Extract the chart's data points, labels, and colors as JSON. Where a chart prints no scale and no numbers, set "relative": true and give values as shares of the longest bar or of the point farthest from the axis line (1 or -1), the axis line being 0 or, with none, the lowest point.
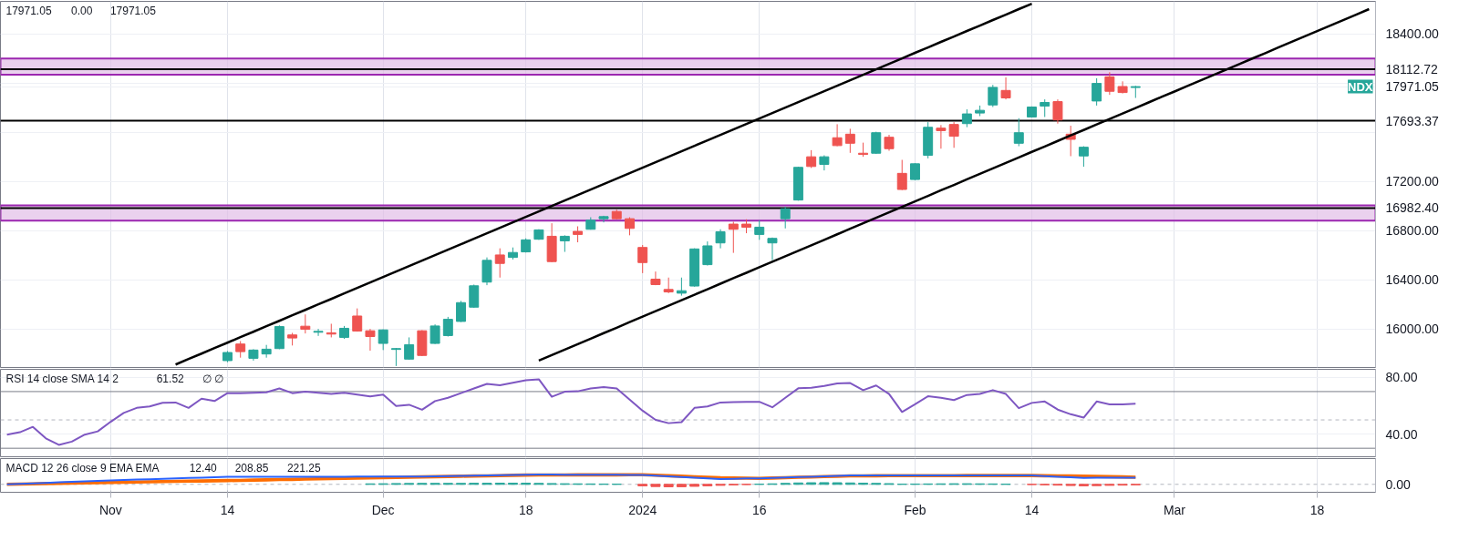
{
  "chart_data": [
    {
      "type": "candlestick",
      "categories": [
        null,
        null,
        null,
        null,
        null,
        null,
        null,
        null,
        null,
        null,
        null,
        null,
        null,
        null,
        null,
        null,
        null,
        null,
        null,
        null,
        null,
        null,
        null,
        null,
        null,
        null,
        null,
        null,
        null,
        null,
        null,
        null,
        null,
        null,
        null,
        null,
        null,
        null,
        null,
        null,
        null,
        null,
        null,
        null,
        null,
        null,
        null,
        null,
        null,
        null,
        null,
        null,
        null,
        null,
        null,
        null,
        null,
        null,
        null,
        null,
        null,
        null,
        null,
        null,
        null,
        null,
        null,
        null,
        null,
        null,
        null,
        null,
        null,
        null,
        null,
        null,
        null,
        null,
        null,
        null,
        null,
        null,
        null,
        null,
        null,
        null,
        null,
        null,
        null,
        null,
        null,
        null,
        null,
        null,
        null,
        null,
        null,
        null,
        null,
        null,
        null,
        null,
        null,
        null,
        null,
        null
      ],
      "ohlc": [
        null,
        null,
        null,
        null,
        null,
        null,
        null,
        null,
        null,
        null,
        null,
        null,
        null,
        null,
        null,
        null,
        null,
        [
          15741,
          15819,
          15728,
          15807
        ],
        [
          15876,
          15900,
          15765,
          15814
        ],
        [
          15760,
          15834,
          15741,
          15827
        ],
        [
          15795,
          15869,
          15765,
          15834
        ],
        [
          15839,
          16028,
          15834,
          16018
        ],
        [
          15950,
          15967,
          15864,
          15925
        ],
        [
          16021,
          16117,
          15962,
          15996
        ],
        [
          15972,
          15999,
          15942,
          15979
        ],
        [
          15967,
          16041,
          15930,
          15957
        ],
        [
          15930,
          16023,
          15918,
          16004
        ],
        [
          16104,
          16166,
          15977,
          15982
        ],
        [
          15984,
          15999,
          15822,
          15937
        ],
        [
          15881,
          15996,
          15827,
          15991
        ],
        [
          15832,
          15844,
          15697,
          15839
        ],
        [
          15753,
          15930,
          15748,
          15871
        ],
        [
          15984,
          15989,
          15778,
          15783
        ],
        [
          15881,
          16036,
          15876,
          16023
        ],
        [
          15945,
          16097,
          15937,
          16077
        ],
        [
          16060,
          16227,
          16055,
          16213
        ],
        [
          16176,
          16360,
          16171,
          16350
        ],
        [
          16380,
          16581,
          16355,
          16557
        ],
        [
          16601,
          16655,
          16417,
          16532
        ],
        [
          16581,
          16662,
          16564,
          16621
        ],
        [
          16626,
          16736,
          16621,
          16724
        ],
        [
          16729,
          16810,
          16724,
          16805
        ],
        [
          16753,
          16859,
          16542,
          16547
        ],
        [
          16716,
          16761,
          16626,
          16753
        ],
        [
          16793,
          16834,
          16704,
          16768
        ],
        [
          16810,
          16908,
          16807,
          16884
        ],
        [
          16896,
          16920,
          16866,
          16913
        ],
        [
          16955,
          16970,
          16891,
          16896
        ],
        [
          16896,
          16908,
          16761,
          16817
        ],
        [
          16662,
          16682,
          16453,
          16539
        ],
        [
          16404,
          16466,
          16355,
          16360
        ],
        [
          16320,
          16417,
          16290,
          16300
        ],
        [
          16290,
          16417,
          16270,
          16310
        ],
        [
          16348,
          16655,
          16343,
          16650
        ],
        [
          16522,
          16711,
          16515,
          16675
        ],
        [
          16699,
          16810,
          16655,
          16790
        ],
        [
          16852,
          16871,
          16618,
          16810
        ],
        [
          16852,
          16891,
          16778,
          16827
        ],
        [
          16768,
          16884,
          16724,
          16827
        ],
        [
          16699,
          16743,
          16559,
          16736
        ],
        [
          16896,
          16994,
          16817,
          16977
        ],
        [
          17048,
          17319,
          17043,
          17314
        ],
        [
          17400,
          17454,
          17309,
          17321
        ],
        [
          17338,
          17412,
          17289,
          17400
        ],
        [
          17555,
          17665,
          17486,
          17491
        ],
        [
          17584,
          17628,
          17432,
          17510
        ],
        [
          17429,
          17515,
          17400,
          17419
        ],
        [
          17429,
          17604,
          17424,
          17596
        ],
        [
          17559,
          17579,
          17449,
          17466
        ],
        [
          17265,
          17375,
          17129,
          17134
        ],
        [
          17215,
          17348,
          17210,
          17343
        ],
        [
          17412,
          17682,
          17387,
          17640
        ],
        [
          17633,
          17658,
          17466,
          17613
        ],
        [
          17663,
          17682,
          17473,
          17567
        ],
        [
          17670,
          17786,
          17641,
          17749
        ],
        [
          17756,
          17817,
          17731,
          17778
        ],
        [
          17822,
          17985,
          17805,
          17965
        ],
        [
          17940,
          18046,
          17867,
          17879
        ],
        [
          17510,
          17714,
          17486,
          17596
        ],
        [
          17724,
          17810,
          17719,
          17805
        ],
        [
          17813,
          17867,
          17724,
          17842
        ],
        [
          17849,
          17867,
          17670,
          17700
        ],
        [
          17584,
          17653,
          17405,
          17542
        ],
        [
          17407,
          17486,
          17319,
          17478
        ],
        [
          17854,
          18039,
          17817,
          17997
        ],
        [
          18051,
          18088,
          17904,
          17933
        ],
        [
          17972,
          18014,
          17916,
          17923
        ],
        [
          17964,
          17978,
          17879,
          17971.05
        ],
        null,
        null,
        null,
        null,
        null,
        null,
        null,
        null,
        null,
        null,
        null,
        null,
        null,
        null,
        null,
        null,
        null,
        null
      ],
      "colors": [
        null,
        null,
        null,
        null,
        null,
        null,
        null,
        null,
        null,
        null,
        null,
        null,
        null,
        null,
        null,
        null,
        null,
        "#26a69a",
        "#ef5350",
        "#26a69a",
        "#26a69a",
        "#26a69a",
        "#ef5350",
        "#ef5350",
        "#26a69a",
        "#ef5350",
        "#26a69a",
        "#ef5350",
        "#ef5350",
        "#26a69a",
        "#26a69a",
        "#26a69a",
        "#ef5350",
        "#26a69a",
        "#26a69a",
        "#26a69a",
        "#26a69a",
        "#26a69a",
        "#ef5350",
        "#26a69a",
        "#26a69a",
        "#26a69a",
        "#ef5350",
        "#26a69a",
        "#ef5350",
        "#26a69a",
        "#26a69a",
        "#ef5350",
        "#ef5350",
        "#ef5350",
        "#ef5350",
        "#ef5350",
        "#26a69a",
        "#26a69a",
        "#26a69a",
        "#26a69a",
        "#ef5350",
        "#ef5350",
        "#26a69a",
        "#26a69a",
        "#26a69a",
        "#26a69a",
        "#ef5350",
        "#26a69a",
        "#ef5350",
        "#ef5350",
        "#ef5350",
        "#26a69a",
        "#ef5350",
        "#ef5350",
        "#26a69a",
        "#26a69a",
        "#ef5350",
        "#ef5350",
        "#26a69a",
        "#26a69a",
        "#26a69a",
        "#ef5350",
        "#26a69a",
        "#26a69a",
        "#26a69a",
        "#ef5350",
        "#ef5350",
        "#26a69a",
        "#26a69a",
        "#ef5350",
        "#ef5350",
        "#26a69a",
        null,
        null,
        null,
        null,
        null,
        null,
        null,
        null,
        null,
        null,
        null,
        null,
        null,
        null,
        null,
        null,
        null,
        null
      ],
      "series": [
        {
          "type": "line",
          "color": "#000000",
          "values": [
            null,
            null,
            null,
            null,
            null,
            null,
            null,
            null,
            null,
            null,
            null,
            null,
            null,
            15709,
            15754,
            15798,
            15843,
            15887,
            15932,
            15976,
            16021,
            16065,
            16110,
            16154,
            16199,
            16243,
            16288,
            16332,
            16377,
            16421,
            16466,
            16510,
            16555,
            16599,
            16644,
            16688,
            16733,
            16777,
            16822,
            16866,
            16911,
            16955,
            17000,
            17044,
            17089,
            17133,
            17178,
            17222,
            17267,
            17311,
            17356,
            17400,
            17445,
            17489,
            17534,
            17578,
            17623,
            17667,
            17712,
            17756,
            17801,
            17845,
            17890,
            17934,
            17979,
            18023,
            18068,
            18112,
            18157,
            18201,
            18246,
            18290,
            18335,
            18379,
            18424,
            18468,
            18513,
            18557,
            18602,
            18646,
            null,
            null,
            null,
            null,
            null,
            null,
            null,
            null,
            null,
            null,
            null,
            null,
            null,
            null,
            null,
            null,
            null,
            null,
            null,
            null,
            null,
            null,
            null,
            null,
            null,
            null
          ]
        },
        {
          "type": "line",
          "color": "#000000",
          "values": [
            null,
            null,
            null,
            null,
            null,
            null,
            null,
            null,
            null,
            null,
            null,
            null,
            null,
            null,
            null,
            null,
            null,
            null,
            null,
            null,
            null,
            null,
            null,
            null,
            null,
            null,
            null,
            null,
            null,
            null,
            null,
            null,
            null,
            null,
            null,
            null,
            null,
            null,
            null,
            null,
            null,
            15741,
            15786,
            15830,
            15875,
            15920,
            15965,
            16009,
            16054,
            16099,
            16143,
            16188,
            16233,
            16277,
            16322,
            16367,
            16412,
            16456,
            16501,
            16546,
            16590,
            16635,
            16680,
            16724,
            16769,
            16814,
            16859,
            16903,
            16948,
            16993,
            17037,
            17082,
            17127,
            17171,
            17216,
            17261,
            17306,
            17350,
            17395,
            17440,
            17484,
            17529,
            17574,
            17618,
            17663,
            17708,
            17753,
            17797,
            17842,
            17887,
            17931,
            17976,
            18021,
            18065,
            18110,
            18155,
            18200,
            18244,
            18289,
            18334,
            18378,
            18423,
            18468,
            18512,
            18557,
            18602
          ]
        }
      ],
      "ylim": [
        15685,
        18665
      ],
      "yticks": [
        {
          "value": 16000,
          "label": "16000.00"
        },
        {
          "value": 16400,
          "label": "16400.00"
        },
        {
          "value": 16800,
          "label": "16800.00"
        },
        {
          "value": 17200,
          "label": "17200.00"
        },
        {
          "value": 17600,
          "label": null
        },
        {
          "value": 17971.05,
          "label": "17971.05"
        },
        {
          "value": 18000,
          "label": null
        },
        {
          "value": 18400,
          "label": "18400.00"
        }
      ],
      "ref_lines": [
        {
          "axis": "y",
          "value": 18112.72,
          "label": "18112.72",
          "color": "#000000"
        },
        {
          "axis": "y",
          "value": 17693.37,
          "label": "17693.37",
          "color": "#000000"
        },
        {
          "axis": "y",
          "value": 16982.4,
          "label": "16982.40",
          "color": "#000000"
        }
      ],
      "bands": [
        {
          "axis": "y",
          "from": 18068,
          "to": 18199,
          "color": "#e1bee7"
        },
        {
          "axis": "y",
          "from": 16881,
          "to": 17004,
          "color": "#e1bee7"
        }
      ],
      "annotations": [
        "17971.05",
        "0.00",
        "17971.05",
        "NDX"
      ],
      "grid": true,
      "tick_labels": "y"
    },
    {
      "type": "line",
      "categories": [
        null,
        null,
        null,
        null,
        null,
        null,
        null,
        null,
        null,
        null,
        null,
        null,
        null,
        null,
        null,
        null,
        null,
        null,
        null,
        null,
        null,
        null,
        null,
        null,
        null,
        null,
        null,
        null,
        null,
        null,
        null,
        null,
        null,
        null,
        null,
        null,
        null,
        null,
        null,
        null,
        null,
        null,
        null,
        null,
        null,
        null,
        null,
        null,
        null,
        null,
        null,
        null,
        null,
        null,
        null,
        null,
        null,
        null,
        null,
        null,
        null,
        null,
        null,
        null,
        null,
        null,
        null,
        null,
        null,
        null,
        null,
        null,
        null,
        null,
        null,
        null,
        null,
        null,
        null,
        null,
        null,
        null,
        null,
        null,
        null,
        null,
        null,
        null,
        null,
        null,
        null,
        null,
        null,
        null,
        null,
        null,
        null,
        null,
        null,
        null,
        null,
        null,
        null,
        null,
        null,
        null
      ],
      "series": [
        {
          "color": "#7e57c2",
          "values": [
            39.6,
            41.3,
            45.1,
            37.0,
            32.4,
            34.7,
            39.6,
            41.9,
            48.7,
            54.9,
            58.5,
            59.5,
            62.1,
            62.3,
            58.5,
            65.0,
            63.3,
            68.9,
            68.9,
            69.2,
            69.5,
            72.2,
            68.9,
            69.9,
            69.1,
            68.3,
            69.2,
            67.9,
            66.6,
            67.9,
            59.8,
            60.7,
            57.2,
            63.3,
            65.6,
            68.9,
            72.2,
            75.4,
            74.4,
            76.2,
            78.0,
            78.7,
            66.3,
            69.9,
            70.2,
            72.2,
            73.2,
            72.2,
            64.4,
            56.5,
            50.0,
            47.7,
            48.4,
            58.5,
            59.5,
            62.3,
            62.6,
            62.8,
            62.8,
            58.9,
            65.6,
            72.3,
            72.7,
            74.0,
            75.7,
            76.0,
            71.0,
            74.3,
            68.3,
            55.6,
            61.0,
            66.7,
            65.6,
            64.0,
            67.6,
            68.3,
            71.0,
            68.3,
            58.3,
            62.0,
            63.0,
            57.3,
            54.0,
            51.6,
            63.0,
            61.0,
            61.0,
            61.5,
            null,
            null,
            null,
            null,
            null,
            null,
            null,
            null,
            null,
            null,
            null,
            null,
            null,
            null,
            null,
            null,
            null,
            null
          ]
        }
      ],
      "ylim": [
        24,
        85.7
      ],
      "yticks": [
        {
          "value": 40,
          "label": "40.00"
        },
        {
          "value": 80,
          "label": "80.00"
        }
      ],
      "ref_lines": [
        {
          "axis": "y",
          "value": 70,
          "color": "#787b86",
          "line_style": "solid"
        },
        {
          "axis": "y",
          "value": 50,
          "color": "#b2b5be",
          "line_style": "dashed"
        },
        {
          "axis": "y",
          "value": 30,
          "color": "#787b86",
          "line_style": "solid"
        }
      ],
      "annotations": [
        "RSI 14 close SMA 14 2",
        "61.52",
        "∅ ∅"
      ],
      "grid": true,
      "tick_labels": "y"
    },
    {
      "type": "line",
      "relative": true,
      "categories": [
        null,
        null,
        null,
        null,
        null,
        null,
        null,
        null,
        "Nov",
        null,
        null,
        null,
        null,
        null,
        null,
        null,
        null,
        "14",
        null,
        null,
        null,
        null,
        null,
        null,
        null,
        null,
        null,
        null,
        null,
        "Dec",
        null,
        null,
        null,
        null,
        null,
        null,
        null,
        null,
        null,
        null,
        "18",
        null,
        null,
        null,
        null,
        null,
        null,
        null,
        null,
        "2024",
        null,
        null,
        null,
        null,
        null,
        null,
        null,
        null,
        "16",
        null,
        null,
        null,
        null,
        null,
        null,
        null,
        null,
        null,
        null,
        null,
        "Feb",
        null,
        null,
        null,
        null,
        null,
        null,
        null,
        null,
        "14",
        null,
        null,
        null,
        null,
        null,
        null,
        null,
        null,
        null,
        null,
        "Mar",
        null,
        null,
        null,
        null,
        null,
        null,
        null,
        null,
        null,
        null,
        "18",
        null,
        null,
        null,
        null
      ],
      "series": [
        {
          "type": "bar",
          "color": "#26a69a",
          "values": [
            null,
            null,
            null,
            null,
            null,
            null,
            null,
            null,
            null,
            null,
            null,
            null,
            null,
            null,
            null,
            null,
            null,
            null,
            null,
            null,
            null,
            null,
            null,
            null,
            null,
            null,
            null,
            null,
            0.05,
            0.06,
            0.08,
            0.09,
            0.1,
            0.1,
            0.1,
            0.1,
            0.11,
            0.11,
            0.12,
            0.12,
            0.12,
            0.1,
            0.08,
            0.06,
            0.05,
            0.04,
            0.03,
            0.02,
            null,
            null,
            null,
            null,
            null,
            null,
            null,
            null,
            null,
            null,
            0.02,
            0.05,
            0.1,
            0.14,
            0.16,
            0.17,
            0.16,
            0.14,
            0.12,
            0.1,
            0.07,
            0.02,
            0.03,
            0.04,
            0.05,
            0.06,
            0.06,
            0.05,
            0.04,
            0.02,
            null,
            null,
            null,
            null,
            null,
            null,
            null,
            null,
            null,
            null,
            null,
            null,
            null,
            null,
            null,
            null,
            null,
            null,
            null,
            null,
            null,
            null,
            null,
            null,
            null,
            null,
            null,
            null
          ]
        },
        {
          "type": "bar",
          "color": "#ef5350",
          "values": [
            null,
            null,
            null,
            null,
            null,
            null,
            null,
            null,
            null,
            null,
            null,
            null,
            null,
            null,
            null,
            null,
            null,
            null,
            null,
            null,
            null,
            null,
            null,
            null,
            null,
            null,
            null,
            null,
            null,
            null,
            null,
            null,
            null,
            null,
            null,
            null,
            null,
            null,
            null,
            null,
            null,
            null,
            null,
            null,
            null,
            null,
            null,
            null,
            null,
            -0.15,
            -0.22,
            -0.25,
            -0.24,
            -0.2,
            -0.15,
            -0.1,
            -0.06,
            -0.02,
            null,
            null,
            null,
            null,
            null,
            null,
            null,
            null,
            null,
            null,
            null,
            null,
            null,
            null,
            null,
            null,
            null,
            null,
            null,
            null,
            null,
            -0.02,
            -0.05,
            -0.08,
            -0.12,
            -0.15,
            -0.13,
            -0.1,
            -0.08,
            -0.05,
            null,
            null,
            null,
            null,
            null,
            null,
            null,
            null,
            null,
            null,
            null,
            null,
            null,
            null,
            null,
            null,
            null,
            null
          ]
        },
        {
          "color": "#2962ff",
          "values": [
            0.0,
            0.05,
            0.1,
            0.15,
            0.2,
            0.25,
            0.3,
            0.35,
            0.4,
            0.44,
            0.48,
            0.52,
            0.56,
            0.6,
            0.64,
            0.68,
            0.72,
            0.77,
            0.77,
            0.77,
            0.77,
            0.77,
            0.77,
            0.77,
            0.77,
            0.77,
            0.77,
            0.78,
            0.78,
            0.78,
            0.78,
            0.78,
            0.78,
            0.8,
            0.83,
            0.85,
            0.88,
            0.9,
            0.93,
            0.95,
            0.98,
            1.0,
            0.99,
            0.98,
            0.98,
            0.97,
            0.96,
            0.96,
            0.95,
            0.94,
            0.87,
            0.81,
            0.74,
            0.67,
            0.61,
            0.54,
            0.56,
            0.59,
            0.61,
            0.65,
            0.69,
            0.73,
            0.77,
            0.81,
            0.85,
            0.89,
            0.89,
            0.89,
            0.89,
            0.89,
            0.89,
            0.89,
            0.89,
            0.89,
            0.89,
            0.89,
            0.89,
            0.89,
            0.89,
            0.89,
            0.83,
            0.77,
            0.71,
            0.65,
            0.66,
            0.67,
            0.67,
            0.68,
            null,
            null,
            null,
            null,
            null,
            null,
            null,
            null,
            null,
            null,
            null,
            null,
            null,
            null,
            null,
            null,
            null,
            null
          ]
        },
        {
          "color": "#ff6d00",
          "values": [
            0.0,
            0.03,
            0.05,
            0.08,
            0.1,
            0.13,
            0.15,
            0.18,
            0.2,
            0.22,
            0.24,
            0.26,
            0.28,
            0.3,
            0.32,
            0.34,
            0.36,
            0.38,
            0.4,
            0.43,
            0.45,
            0.48,
            0.5,
            0.53,
            0.55,
            0.58,
            0.6,
            0.63,
            0.65,
            0.68,
            0.7,
            0.73,
            0.75,
            0.77,
            0.8,
            0.82,
            0.84,
            0.86,
            0.88,
            0.91,
            0.93,
            0.95,
            0.95,
            0.95,
            0.96,
            0.96,
            0.96,
            0.96,
            0.97,
            0.97,
            0.92,
            0.87,
            0.82,
            0.76,
            0.71,
            0.66,
            0.64,
            0.62,
            0.6,
            0.64,
            0.67,
            0.71,
            0.74,
            0.78,
            0.81,
            0.85,
            0.86,
            0.87,
            0.88,
            0.88,
            0.88,
            0.88,
            0.88,
            0.88,
            0.89,
            0.89,
            0.89,
            0.89,
            0.89,
            0.89,
            0.87,
            0.86,
            0.84,
            0.83,
            0.8,
            0.77,
            0.75,
            0.72,
            null,
            null,
            null,
            null,
            null,
            null,
            null,
            null,
            null,
            null,
            null,
            null,
            null,
            null,
            null,
            null,
            null,
            null
          ]
        }
      ],
      "ref_lines": [
        {
          "axis": "y",
          "value": 0,
          "label": "0.00",
          "color": "#b2b5be",
          "line_style": "dashed"
        }
      ],
      "annotations": [
        "MACD 12 26 close 9 EMA EMA",
        "12.40",
        "208.85",
        "221.25"
      ],
      "grid": "x"
    }
  ]
}
